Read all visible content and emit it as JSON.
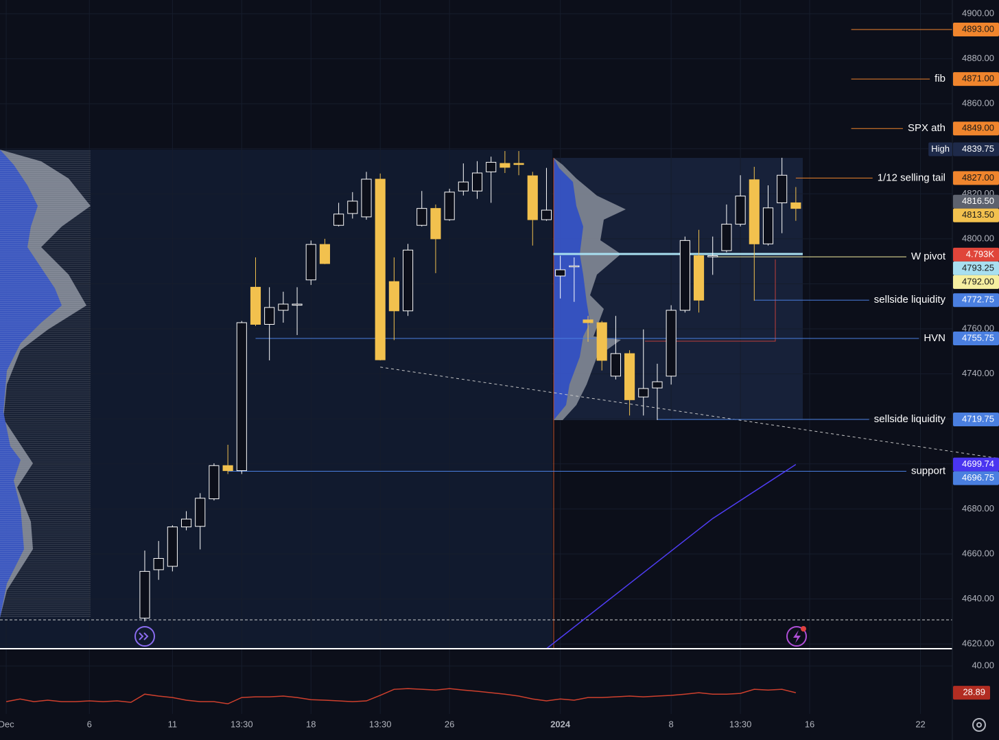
{
  "chart_data": {
    "type": "candlestick",
    "xlim": [
      -10.45,
      58.3
    ],
    "ylim": [
      4617.9,
      4906.1
    ],
    "xticks": [
      {
        "value": -10,
        "label": "Dec"
      },
      {
        "value": -4,
        "label": "6"
      },
      {
        "value": 2,
        "label": "11"
      },
      {
        "value": 7,
        "label": "13:30"
      },
      {
        "value": 12,
        "label": "18"
      },
      {
        "value": 17,
        "label": "13:30"
      },
      {
        "value": 22,
        "label": "26"
      },
      {
        "value": 30,
        "label": "2024"
      },
      {
        "value": 38,
        "label": "8"
      },
      {
        "value": 43,
        "label": "13:30"
      },
      {
        "value": 48,
        "label": "16"
      },
      {
        "value": 56,
        "label": "22"
      }
    ],
    "yticks": [
      {
        "value": 4900,
        "label": "4900.00"
      },
      {
        "value": 4880,
        "label": "4880.00"
      },
      {
        "value": 4860,
        "label": "4860.00"
      },
      {
        "value": 4840,
        "label": "4840.00"
      },
      {
        "value": 4820,
        "label": "4820.00"
      },
      {
        "value": 4800,
        "label": "4800.00"
      },
      {
        "value": 4780,
        "label": "4780.00"
      },
      {
        "value": 4760,
        "label": "4760.00"
      },
      {
        "value": 4740,
        "label": "4740.00"
      },
      {
        "value": 4720,
        "label": "4720.00"
      },
      {
        "value": 4700,
        "label": "4700.00"
      },
      {
        "value": 4680,
        "label": "4680.00"
      },
      {
        "value": 4660,
        "label": "4660.00"
      },
      {
        "value": 4640,
        "label": "4640.00"
      },
      {
        "value": 4620,
        "label": "4620.00"
      }
    ],
    "candles": {
      "x": [
        0,
        1,
        2,
        3,
        4,
        5,
        6,
        7,
        8,
        9,
        10,
        11,
        12,
        13,
        14,
        15,
        16,
        17,
        18,
        19,
        20,
        21,
        22,
        23,
        24,
        25,
        26,
        27,
        28,
        29,
        30,
        31,
        32,
        33,
        34,
        35,
        36,
        37,
        38,
        39,
        40,
        41,
        42,
        43,
        44,
        45,
        46,
        47
      ],
      "open": [
        4631.5,
        4653,
        4654.5,
        4672,
        4672.25,
        4684.5,
        4699.25,
        4697,
        4778.5,
        4762,
        4768.25,
        4770.5,
        4781.75,
        4797.5,
        4806,
        4811.25,
        4809.75,
        4826.5,
        4781,
        4768,
        4806,
        4813.5,
        4808.5,
        4821.25,
        4821.25,
        4829.75,
        4833.5,
        4833.5,
        4828,
        4808.5,
        4783.5,
        4787.75,
        4764,
        4762.75,
        4739,
        4749,
        4729.75,
        4733.75,
        4739,
        4768.25,
        4792.5,
        4792,
        4794.75,
        4806.5,
        4826.25,
        4797.75,
        4816,
        4816
      ],
      "high": [
        4661.5,
        4665.75,
        4672.75,
        4679,
        4687,
        4700.25,
        4708.5,
        4763.5,
        4791.75,
        4778.5,
        4776.5,
        4778.5,
        4799.25,
        4800,
        4816,
        4820.75,
        4829.75,
        4829,
        4791.75,
        4797.75,
        4821.25,
        4815.25,
        4822.25,
        4833.5,
        4834.5,
        4836.5,
        4839,
        4839,
        4829.75,
        4831.5,
        4792.5,
        4791.75,
        4765.75,
        4763.5,
        4765.75,
        4750.5,
        4759.75,
        4744.5,
        4770.5,
        4801,
        4804,
        4801,
        4815.25,
        4828.25,
        4832,
        4823.75,
        4836,
        4823
      ],
      "low": [
        4630,
        4648.5,
        4652.25,
        4670.5,
        4662,
        4683.75,
        4695.5,
        4695.5,
        4761.25,
        4746,
        4762.75,
        4757.25,
        4779.5,
        4788.75,
        4805.5,
        4809,
        4808.5,
        4746,
        4755,
        4765.75,
        4805.5,
        4784.75,
        4808,
        4819.25,
        4817.75,
        4816,
        4829.25,
        4828.25,
        4797,
        4808,
        4773.5,
        4772,
        4754.25,
        4741.5,
        4737.5,
        4721.5,
        4721.5,
        4719.5,
        4735.25,
        4767.25,
        4767.25,
        4784,
        4794,
        4805.5,
        4772.5,
        4797,
        4802.5,
        4808
      ],
      "close": [
        4652.25,
        4658,
        4672,
        4675.5,
        4684.75,
        4699.25,
        4697,
        4762.75,
        4762,
        4769.5,
        4771,
        4771,
        4797.5,
        4789,
        4811,
        4816.75,
        4826.5,
        4746.25,
        4768,
        4795,
        4813.5,
        4800,
        4820.75,
        4825.25,
        4829.25,
        4834,
        4831.75,
        4833,
        4808.5,
        4812.75,
        4786.25,
        4788,
        4762.75,
        4746,
        4749,
        4728.5,
        4733.5,
        4736.5,
        4768.25,
        4799.25,
        4772.75,
        4792.5,
        4806.5,
        4819,
        4797.75,
        4813.75,
        4828.25,
        4813.5
      ],
      "up_color": "#ffffff",
      "down_color": "#f2c14e"
    },
    "levels": [
      {
        "value": 4893,
        "label": "4893.00",
        "color": "#f0852d",
        "text_color": "#1a1a1a",
        "from": 51
      },
      {
        "value": 4871,
        "label": "4871.00",
        "text": "fib",
        "color": "#f0852d",
        "text_color": "#1a1a1a",
        "from": 51
      },
      {
        "value": 4849,
        "label": "4849.00",
        "text": "SPX ath",
        "color": "#f0852d",
        "text_color": "#1a1a1a",
        "from": 51
      },
      {
        "value": 4839.75,
        "label": "4839.75",
        "tag": "High",
        "color": "#1e2a4a",
        "text_color": "#ffffff"
      },
      {
        "value": 4827,
        "label": "4827.00",
        "text": "1/12 selling tail",
        "color": "#f0852d",
        "text_color": "#1a1a1a",
        "from": 47
      },
      {
        "value": 4816.5,
        "label": "4816.50",
        "color": "#5d626e",
        "text_color": "#ffffff"
      },
      {
        "value": 4813.5,
        "label": "4813.50",
        "color": "#f2c14e",
        "text_color": "#1a1a1a"
      },
      {
        "value": 4793,
        "label": "4.793K",
        "color": "#e0453a",
        "text_color": "#ffffff"
      },
      {
        "value": 4793.25,
        "label": "4793.25",
        "color": "#a8dff0",
        "text_color": "#1a1a1a",
        "from": 29.5,
        "to": 47.5
      },
      {
        "value": 4792,
        "label": "4792.00",
        "text": "W pivot",
        "color": "#f6efa0",
        "text_color": "#1a1a1a",
        "from": 41
      },
      {
        "value": 4772.75,
        "label": "4772.75",
        "text": "sellside liquidity",
        "color": "#4a7fe0",
        "text_color": "#ffffff",
        "from": 44
      },
      {
        "value": 4755.75,
        "label": "4755.75",
        "text": "HVN",
        "color": "#4a7fe0",
        "text_color": "#ffffff",
        "from": 8
      },
      {
        "value": 4719.75,
        "label": "4719.75",
        "text": "sellside liquidity",
        "color": "#4a7fe0",
        "text_color": "#ffffff",
        "from": 37
      },
      {
        "value": 4699.74,
        "label": "4699.74",
        "color": "#4a35f0",
        "text_color": "#ffffff"
      },
      {
        "value": 4696.75,
        "label": "4696.75",
        "text": "support",
        "color": "#4a7fe0",
        "text_color": "#ffffff",
        "from": 6
      }
    ],
    "trendline": {
      "x": [
        17,
        61.6
      ],
      "values": [
        4743,
        4702.5
      ],
      "color": "#c8c8c8"
    },
    "ma": {
      "x": [
        29,
        41,
        47
      ],
      "values": [
        4617.9,
        4675.75,
        4699.74
      ],
      "color": "#4f3df5"
    },
    "indicator": {
      "x": [
        -10,
        -9,
        -8,
        -7,
        -6,
        -5,
        -4,
        -3,
        -2,
        -1,
        0,
        1,
        2,
        3,
        4,
        5,
        6,
        7,
        8,
        9,
        10,
        11,
        12,
        13,
        14,
        15,
        16,
        17,
        18,
        19,
        20,
        21,
        22,
        23,
        24,
        25,
        26,
        27,
        28,
        29,
        30,
        31,
        32,
        33,
        34,
        35,
        36,
        37,
        38,
        39,
        40,
        41,
        42,
        43,
        44,
        45,
        46,
        47
      ],
      "values": [
        25.2,
        26.3,
        25.2,
        25.8,
        25.2,
        25.2,
        25.5,
        25.2,
        25.5,
        24.9,
        28.3,
        27.5,
        26.9,
        25.8,
        25.2,
        25.2,
        24.3,
        26.9,
        27.2,
        27.2,
        27.5,
        26.9,
        26.0,
        25.8,
        25.5,
        25.2,
        25.5,
        27.8,
        30.3,
        30.6,
        30.3,
        30.0,
        30.6,
        30.0,
        29.5,
        28.9,
        28.3,
        27.5,
        26.3,
        25.5,
        26.3,
        25.8,
        26.9,
        26.9,
        27.2,
        27.5,
        27.2,
        27.5,
        27.8,
        28.3,
        28.9,
        28.3,
        28.3,
        28.6,
        30.3,
        30.0,
        30.3,
        28.89
      ],
      "color": "#d0402d",
      "label_color": "#b22d22",
      "y2lim": [
        20.1,
        46.3
      ],
      "y2ticks": [
        {
          "value": 40,
          "label": "40.00"
        }
      ]
    }
  }
}
